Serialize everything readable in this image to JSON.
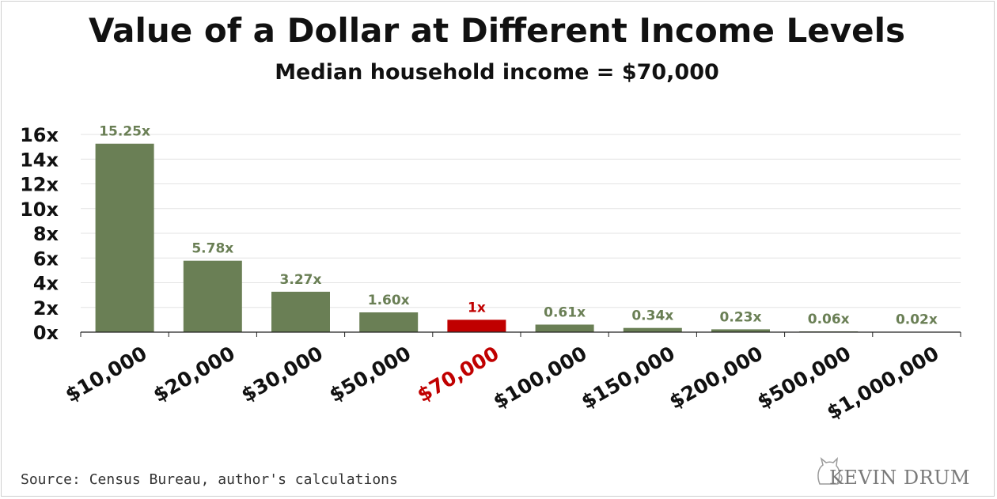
{
  "title": "Value of a Dollar at Different Income Levels",
  "subtitle": "Median household income = $70,000",
  "source": "Source: Census Bureau, author's calculations",
  "logo_text": "KEVIN DRUM",
  "colors": {
    "bar": "#6a7f55",
    "highlight": "#c00000",
    "label": "#6a7f55",
    "axis_text": "#111111",
    "grid": "#e3e3e3"
  },
  "chart_data": {
    "type": "bar",
    "categories": [
      "$10,000",
      "$20,000",
      "$30,000",
      "$50,000",
      "$70,000",
      "$100,000",
      "$150,000",
      "$200,000",
      "$500,000",
      "$1,000,000"
    ],
    "values": [
      15.25,
      5.78,
      3.27,
      1.6,
      1,
      0.61,
      0.34,
      0.23,
      0.06,
      0.02
    ],
    "value_labels": [
      "15.25x",
      "5.78x",
      "3.27x",
      "1.60x",
      "1x",
      "0.61x",
      "0.34x",
      "0.23x",
      "0.06x",
      "0.02x"
    ],
    "highlight_category": "$70,000",
    "y_ticks": [
      0,
      2,
      4,
      6,
      8,
      10,
      12,
      14,
      16
    ],
    "y_tick_labels": [
      "0x",
      "2x",
      "4x",
      "6x",
      "8x",
      "10x",
      "12x",
      "14x",
      "16x"
    ],
    "ylim": [
      0,
      16
    ],
    "grid": true,
    "legend": "none"
  }
}
